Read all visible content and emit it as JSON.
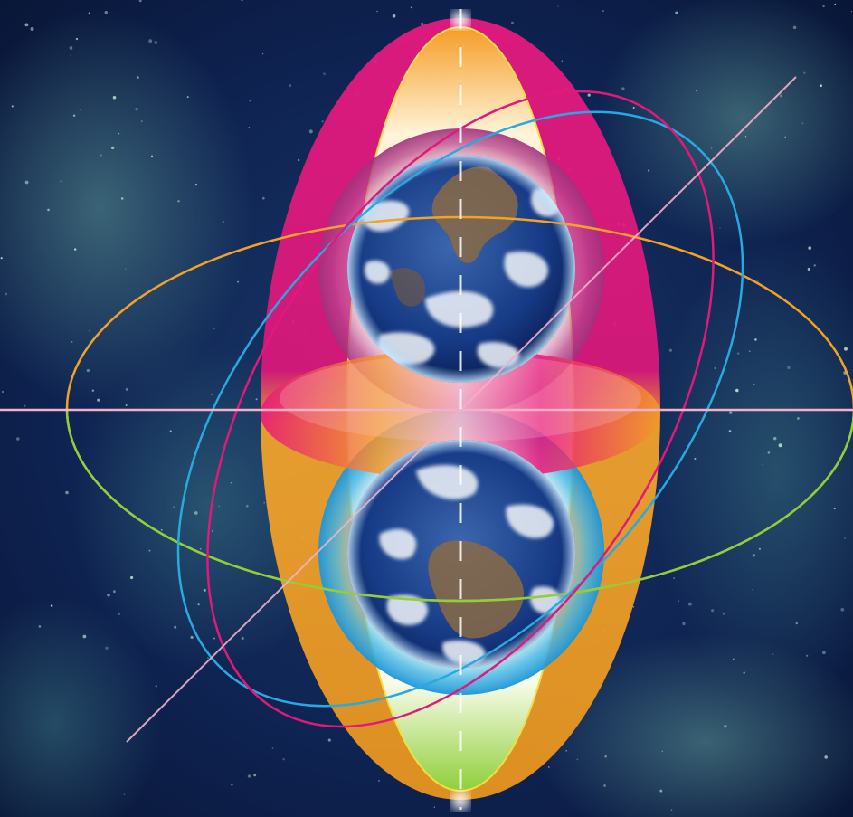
{
  "scene": {
    "subject": "two-earths-nested-ellipses",
    "colors": {
      "space_dark": "#0a1736",
      "space_mid": "#163a63",
      "nebula": "#4f8a8c",
      "magenta": "#e0197a",
      "orange": "#f4a12a",
      "yellow": "#f3dd47",
      "green": "#8fcf3a",
      "cyan": "#27a9e1",
      "pink_axis": "#f3b0c9",
      "ocean": "#1a3a7a",
      "land": "#8a6a45",
      "cloud": "#f2f6fa"
    }
  }
}
